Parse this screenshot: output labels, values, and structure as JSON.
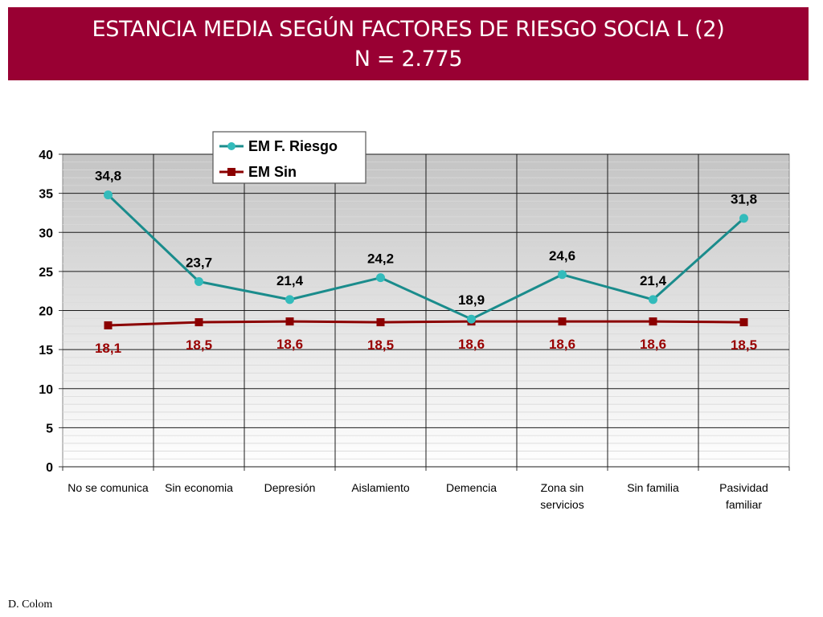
{
  "header": {
    "title": "ESTANCIA MEDIA SEGÚN FACTORES DE RIESGO SOCIA L (2)",
    "subtitle": "N = 2.775"
  },
  "footer": {
    "author": "D. Colom"
  },
  "colors": {
    "banner": "#990033",
    "series_riesgo": "#1A8C8C",
    "series_riesgo_marker": "#33BBBB",
    "series_sin": "#8B0000",
    "label_sin": "#990000"
  },
  "chart_data": {
    "type": "line",
    "categories": [
      "No se comunica",
      "Sin economia",
      "Depresión",
      "Aislamiento",
      "Demencia",
      "Zona sin servicios",
      "Sin familia",
      "Pasividad familiar"
    ],
    "series": [
      {
        "name": "EM F. Riesgo",
        "values": [
          34.8,
          23.7,
          21.4,
          24.2,
          18.9,
          24.6,
          21.4,
          31.8
        ],
        "labels": [
          "34,8",
          "23,7",
          "21,4",
          "24,2",
          "18,9",
          "24,6",
          "21,4",
          "31,8"
        ]
      },
      {
        "name": "EM Sin",
        "values": [
          18.1,
          18.5,
          18.6,
          18.5,
          18.6,
          18.6,
          18.6,
          18.5
        ],
        "labels": [
          "18,1",
          "18,5",
          "18,6",
          "18,5",
          "18,6",
          "18,6",
          "18,6",
          "18,5"
        ]
      }
    ],
    "ylim": [
      0,
      40
    ],
    "yticks": [
      0,
      5,
      10,
      15,
      20,
      25,
      30,
      35,
      40
    ],
    "grid": true,
    "legend": "top-center"
  }
}
